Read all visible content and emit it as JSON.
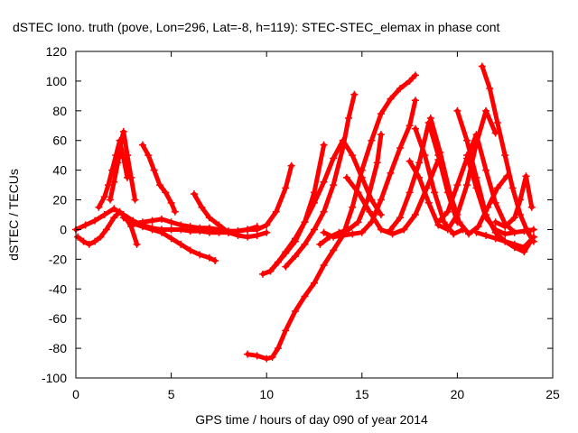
{
  "chart_data": {
    "type": "scatter",
    "title": "dSTEC Iono. truth (pove, Lon=296, Lat=-8, h=119): STEC-STEC_elemax in phase cont",
    "xlabel": "GPS time / hours of day 090 of year 2014",
    "ylabel": "dSTEC  / TECUs",
    "xlim": [
      0,
      25
    ],
    "ylim": [
      -100,
      120
    ],
    "x_ticks": [
      "0",
      "5",
      "10",
      "15",
      "20",
      "25"
    ],
    "y_ticks": [
      "-100",
      "-80",
      "-60",
      "-40",
      "-20",
      "0",
      "20",
      "40",
      "60",
      "80",
      "100",
      "120"
    ],
    "grid": false,
    "legend": "none",
    "marker": "plus",
    "colors": {
      "series": "#ff0000",
      "axes": "#000000"
    },
    "series": [
      {
        "x": [
          0.0,
          0.5,
          1.0,
          1.5,
          2.0,
          2.5,
          3.0,
          3.5,
          4.0,
          4.5,
          5.0
        ],
        "values": [
          0,
          3,
          6,
          10,
          14,
          10,
          6,
          3,
          1,
          0,
          0
        ]
      },
      {
        "x": [
          0.1,
          0.4,
          0.7,
          1.0,
          1.3,
          1.6,
          2.0,
          2.3,
          2.6,
          2.9,
          3.2
        ],
        "values": [
          -5,
          -8,
          -10,
          -8,
          -5,
          0,
          8,
          12,
          8,
          2,
          -10
        ]
      },
      {
        "x": [
          1.2,
          1.5,
          1.7,
          1.9,
          2.1,
          2.3,
          2.5,
          2.7
        ],
        "values": [
          15,
          22,
          30,
          40,
          50,
          60,
          48,
          35
        ]
      },
      {
        "x": [
          1.8,
          2.0,
          2.2,
          2.35,
          2.5,
          2.7,
          2.9,
          3.1
        ],
        "values": [
          20,
          32,
          45,
          58,
          66,
          50,
          35,
          20
        ]
      },
      {
        "x": [
          3.5,
          3.8,
          4.1,
          4.4,
          4.7,
          5.0,
          5.2
        ],
        "values": [
          57,
          50,
          40,
          30,
          25,
          18,
          12
        ]
      },
      {
        "x": [
          2.5,
          3.0,
          3.5,
          4.0,
          4.5,
          5.0,
          5.5,
          6.0,
          6.5,
          7.0,
          7.3
        ],
        "values": [
          8,
          4,
          2,
          0,
          -2,
          -6,
          -10,
          -14,
          -17,
          -19,
          -21
        ]
      },
      {
        "x": [
          3.0,
          3.5,
          4.0,
          4.5,
          5.0,
          5.5,
          6.0,
          6.5,
          7.0,
          7.5,
          8.0,
          8.5,
          9.0,
          9.5
        ],
        "values": [
          4,
          5,
          6,
          7,
          5,
          3,
          2,
          1,
          1,
          0,
          -1,
          -1,
          0,
          2
        ]
      },
      {
        "x": [
          6.2,
          6.6,
          7.0,
          7.5,
          8.0,
          8.5,
          9.0,
          9.5,
          10.0
        ],
        "values": [
          24,
          15,
          8,
          3,
          -2,
          -4,
          -5,
          -4,
          -2
        ]
      },
      {
        "x": [
          4.5,
          5.0,
          5.5,
          6.0,
          6.5,
          7.0,
          7.5,
          8.0,
          8.5,
          9.0,
          9.5,
          10.0,
          10.5,
          11.0,
          11.3
        ],
        "values": [
          0,
          0,
          0,
          -1,
          -1,
          -2,
          -2,
          -2,
          -1,
          0,
          0,
          3,
          12,
          28,
          43
        ]
      },
      {
        "x": [
          9.0,
          9.5,
          10.0,
          10.3,
          10.6,
          11.0,
          11.5,
          12.0,
          12.5,
          13.0,
          13.5,
          14.0,
          14.5,
          15.0,
          15.5,
          16.0,
          16.5,
          17.0,
          17.5,
          17.8
        ],
        "values": [
          -84,
          -85,
          -87,
          -86,
          -80,
          -68,
          -55,
          -45,
          -36,
          -24,
          -14,
          -4,
          15,
          40,
          60,
          78,
          88,
          95,
          100,
          104
        ]
      },
      {
        "x": [
          9.8,
          10.2,
          10.6,
          11.0,
          11.5,
          12.0,
          12.5,
          13.0,
          13.5,
          14.0,
          14.5,
          15.0,
          15.5,
          16.0
        ],
        "values": [
          -30,
          -28,
          -22,
          -15,
          -6,
          5,
          18,
          32,
          48,
          60,
          50,
          35,
          20,
          10
        ]
      },
      {
        "x": [
          10.2,
          10.6,
          11.0,
          11.5,
          12.0,
          12.5,
          13.0
        ],
        "values": [
          -28,
          -22,
          -16,
          -8,
          5,
          25,
          57
        ]
      },
      {
        "x": [
          11.0,
          11.5,
          12.0,
          12.5,
          13.0,
          13.5,
          14.0,
          14.3,
          14.6
        ],
        "values": [
          -25,
          -18,
          -10,
          0,
          12,
          30,
          55,
          75,
          91
        ]
      },
      {
        "x": [
          12.8,
          13.3,
          13.8,
          14.3,
          14.8,
          15.3,
          15.8,
          16.0
        ],
        "values": [
          -10,
          -5,
          -2,
          0,
          5,
          20,
          45,
          64
        ]
      },
      {
        "x": [
          13.0,
          13.5,
          14.0,
          14.5,
          15.0,
          15.5,
          16.0,
          16.5,
          17.0,
          17.5,
          17.8
        ],
        "values": [
          -2,
          -5,
          -4,
          -3,
          -2,
          5,
          20,
          38,
          55,
          70,
          87
        ]
      },
      {
        "x": [
          14.2,
          14.8,
          15.4,
          16.0,
          16.6,
          17.2,
          17.8,
          18.4,
          19.0
        ],
        "values": [
          35,
          25,
          12,
          0,
          -3,
          0,
          10,
          28,
          47
        ]
      },
      {
        "x": [
          16.5,
          17.0,
          17.5,
          18.0,
          18.5,
          19.0,
          19.5,
          20.0
        ],
        "values": [
          0,
          8,
          25,
          45,
          72,
          50,
          25,
          5
        ]
      },
      {
        "x": [
          17.8,
          18.3,
          18.8,
          19.3,
          19.8,
          20.3
        ],
        "values": [
          68,
          50,
          25,
          5,
          -3,
          0
        ]
      },
      {
        "x": [
          17.5,
          18.0,
          18.5,
          19.0,
          19.5,
          20.0,
          20.5,
          21.0,
          21.5,
          22.0
        ],
        "values": [
          46,
          35,
          18,
          3,
          0,
          10,
          30,
          58,
          80,
          65
        ]
      },
      {
        "x": [
          18.6,
          19.1,
          19.6,
          20.1,
          20.6,
          21.1,
          21.6,
          22.1,
          22.6
        ],
        "values": [
          75,
          52,
          25,
          5,
          -3,
          2,
          15,
          28,
          36
        ]
      },
      {
        "x": [
          19.0,
          19.5,
          20.0,
          20.5,
          21.0,
          21.5,
          22.0,
          22.5,
          23.0
        ],
        "values": [
          5,
          12,
          30,
          48,
          64,
          40,
          18,
          4,
          -2
        ]
      },
      {
        "x": [
          20.0,
          20.5,
          21.0,
          21.5,
          22.0,
          22.5,
          23.0,
          23.5,
          24.0
        ],
        "values": [
          80,
          60,
          35,
          10,
          -2,
          -8,
          -12,
          -15,
          -5
        ]
      },
      {
        "x": [
          20.5,
          21.0,
          21.5,
          22.0,
          22.5,
          23.0,
          23.5,
          24.0
        ],
        "values": [
          50,
          28,
          8,
          0,
          -3,
          -2,
          -1,
          0
        ]
      },
      {
        "x": [
          21.3,
          21.7,
          22.1,
          22.5,
          22.9,
          23.3,
          23.7,
          24.0
        ],
        "values": [
          110,
          95,
          72,
          50,
          28,
          10,
          -2,
          -8
        ]
      },
      {
        "x": [
          22.0,
          22.5,
          23.0,
          23.3,
          23.6,
          23.9
        ],
        "values": [
          5,
          2,
          8,
          20,
          36,
          15
        ]
      },
      {
        "x": [
          21.0,
          21.5,
          22.0,
          22.5,
          23.0,
          23.5,
          24.0
        ],
        "values": [
          -2,
          -4,
          -6,
          -8,
          -10,
          -12,
          -5
        ]
      }
    ]
  }
}
